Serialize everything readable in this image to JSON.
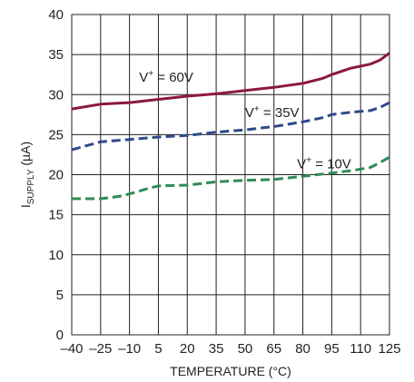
{
  "chart_data": {
    "type": "line",
    "title": "",
    "xlabel": "TEMPERATURE (°C)",
    "ylabel": {
      "main": "I",
      "sub": "SUPPLY",
      "unit": " (µA)"
    },
    "xlim": [
      -40,
      125
    ],
    "ylim": [
      0,
      40
    ],
    "x_ticks": [
      -40,
      -25,
      -10,
      5,
      20,
      35,
      50,
      65,
      80,
      95,
      110,
      125
    ],
    "x_tick_labels": [
      "–40",
      "–25",
      "–10",
      "5",
      "20",
      "35",
      "50",
      "65",
      "80",
      "95",
      "110",
      "125"
    ],
    "y_ticks": [
      0,
      5,
      10,
      15,
      20,
      25,
      30,
      35,
      40
    ],
    "y_tick_labels": [
      "0",
      "5",
      "10",
      "15",
      "20",
      "25",
      "30",
      "35",
      "40"
    ],
    "grid": true,
    "series": [
      {
        "label_main": "V",
        "label_sup": "+",
        "label_rest": " = 60V",
        "label_pos": [
          -5,
          31.6
        ],
        "color": "#8b1a3a",
        "dash": "none",
        "x": [
          -40,
          -25,
          -10,
          5,
          20,
          35,
          50,
          65,
          80,
          90,
          95,
          105,
          115,
          120,
          125
        ],
        "y": [
          28.2,
          28.8,
          29.0,
          29.4,
          29.8,
          30.1,
          30.5,
          30.9,
          31.4,
          32.0,
          32.5,
          33.3,
          33.8,
          34.3,
          35.2
        ]
      },
      {
        "label_main": "V",
        "label_sup": "+",
        "label_rest": " = 35V",
        "label_pos": [
          50,
          27.2
        ],
        "color": "#2e4a8b",
        "dash": "10,5",
        "x": [
          -40,
          -25,
          -10,
          5,
          20,
          35,
          50,
          65,
          80,
          90,
          95,
          105,
          115,
          120,
          125
        ],
        "y": [
          23.1,
          24.1,
          24.4,
          24.7,
          24.9,
          25.3,
          25.6,
          26.0,
          26.6,
          27.1,
          27.5,
          27.8,
          28.0,
          28.4,
          29.0
        ]
      },
      {
        "label_main": "V",
        "label_sup": "+",
        "label_rest": " = 10V",
        "label_pos": [
          77,
          20.8
        ],
        "color": "#2e8b57",
        "dash": "10,5",
        "x": [
          -40,
          -25,
          -15,
          -10,
          0,
          5,
          20,
          35,
          50,
          65,
          80,
          95,
          105,
          115,
          120,
          125
        ],
        "y": [
          17.0,
          17.0,
          17.3,
          17.6,
          18.3,
          18.6,
          18.7,
          19.1,
          19.3,
          19.4,
          19.8,
          20.2,
          20.5,
          20.9,
          21.5,
          22.2
        ]
      }
    ]
  }
}
